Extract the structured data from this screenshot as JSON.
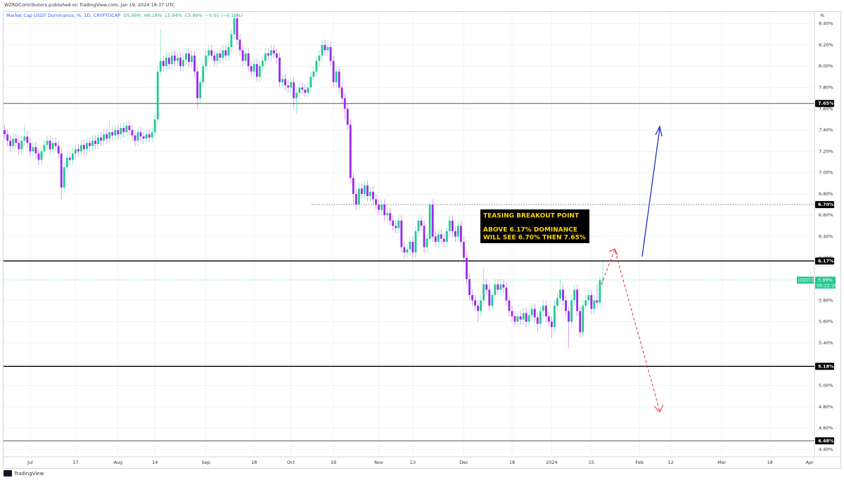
{
  "header": {
    "published": "WZRDContributors published on TradingView.com, Jan 19, 2024 18:37 UTC",
    "footer": "TradingView"
  },
  "chart_data": {
    "type": "candlestick",
    "symbol": "Market Cap USDT Dominance, %, 1D, CRYPTOCAP",
    "legend_values": [
      "O5.99%",
      "H6.16%",
      "L5.94%",
      "C5.99%",
      "−0.01 (−0.10%)"
    ],
    "unit": "%",
    "up_color": "#22c993",
    "down_color": "#9c27f0",
    "xlim": [
      -0.4,
      285.7
    ],
    "ylim": [
      4.33,
      8.51
    ],
    "xticks": [
      {
        "value": 9,
        "label": "Jul"
      },
      {
        "value": 25,
        "label": "17"
      },
      {
        "value": 40,
        "label": "Aug"
      },
      {
        "value": 53,
        "label": "14"
      },
      {
        "value": 71,
        "label": "Sep"
      },
      {
        "value": 88,
        "label": "18"
      },
      {
        "value": 101,
        "label": "Oct"
      },
      {
        "value": 116,
        "label": "16"
      },
      {
        "value": 132,
        "label": "Nov"
      },
      {
        "value": 144,
        "label": "13"
      },
      {
        "value": 162,
        "label": "Dec"
      },
      {
        "value": 179,
        "label": "18"
      },
      {
        "value": 193,
        "label": "2024"
      },
      {
        "value": 207,
        "label": "15"
      },
      {
        "value": 224,
        "label": "Feb"
      },
      {
        "value": 235,
        "label": "12"
      },
      {
        "value": 253,
        "label": "Mar"
      },
      {
        "value": 270,
        "label": "18"
      },
      {
        "value": 284,
        "label": "Apr"
      }
    ],
    "yticks": [
      {
        "value": 8.4,
        "label": "8.40%"
      },
      {
        "value": 8.2,
        "label": "8.20%"
      },
      {
        "value": 8.0,
        "label": "8.00%"
      },
      {
        "value": 7.8,
        "label": "7.80%"
      },
      {
        "value": 7.6,
        "label": "7.60%"
      },
      {
        "value": 7.4,
        "label": "7.40%"
      },
      {
        "value": 7.2,
        "label": "7.20%"
      },
      {
        "value": 7.0,
        "label": "7.00%"
      },
      {
        "value": 6.8,
        "label": "6.80%"
      },
      {
        "value": 6.6,
        "label": "6.60%"
      },
      {
        "value": 6.4,
        "label": "6.40%"
      },
      {
        "value": 6.2,
        "label": "6.20%"
      },
      {
        "value": 6.0,
        "label": "6.00%"
      },
      {
        "value": 5.8,
        "label": "5.80%"
      },
      {
        "value": 5.6,
        "label": "5.60%"
      },
      {
        "value": 5.4,
        "label": "5.40%"
      },
      {
        "value": 5.2,
        "label": "5.20%"
      },
      {
        "value": 5.0,
        "label": "5.00%"
      },
      {
        "value": 4.8,
        "label": "4.80%"
      },
      {
        "value": 4.6,
        "label": "4.60%"
      },
      {
        "value": 4.4,
        "label": "4.40%"
      }
    ],
    "grid": true,
    "levels": [
      {
        "value": 7.65,
        "label": "7.65%",
        "style": "solid",
        "color": "#555555"
      },
      {
        "value": 6.7,
        "label": "6.70%",
        "style": "dotted",
        "color": "#777777"
      },
      {
        "value": 6.17,
        "label": "6.17%",
        "style": "solid",
        "color": "#000000"
      },
      {
        "value": 5.18,
        "label": "5.18%",
        "style": "solid",
        "color": "#000000"
      },
      {
        "value": 4.48,
        "label": "4.48%",
        "style": "solid",
        "color": "#555555"
      }
    ],
    "last_price": {
      "symbol": "USDT.D",
      "value": 5.99,
      "label": "5.99%",
      "countdown": "05:22:26"
    },
    "annotation": [
      "TEASING BREAKOUT POINT",
      "ABOVE 6.17% DOMINANCE",
      "WILL SEE 6.70% THEN 7.65%"
    ],
    "ohlc": [
      [
        7.4,
        7.45,
        7.31,
        7.36
      ],
      [
        7.36,
        7.41,
        7.25,
        7.3
      ],
      [
        7.3,
        7.35,
        7.2,
        7.25
      ],
      [
        7.25,
        7.37,
        7.2,
        7.32
      ],
      [
        7.32,
        7.37,
        7.23,
        7.28
      ],
      [
        7.28,
        7.33,
        7.17,
        7.22
      ],
      [
        7.22,
        7.35,
        7.17,
        7.3
      ],
      [
        7.3,
        7.45,
        7.25,
        7.34
      ],
      [
        7.34,
        7.39,
        7.23,
        7.28
      ],
      [
        7.28,
        7.33,
        7.15,
        7.2
      ],
      [
        7.2,
        7.29,
        7.15,
        7.24
      ],
      [
        7.24,
        7.29,
        7.13,
        7.18
      ],
      [
        7.18,
        7.23,
        7.07,
        7.12
      ],
      [
        7.12,
        7.25,
        7.07,
        7.2
      ],
      [
        7.2,
        7.31,
        7.15,
        7.26
      ],
      [
        7.26,
        7.35,
        7.21,
        7.3
      ],
      [
        7.3,
        7.35,
        7.17,
        7.22
      ],
      [
        7.22,
        7.33,
        7.17,
        7.28
      ],
      [
        7.28,
        7.33,
        7.2,
        7.25
      ],
      [
        7.25,
        7.3,
        7.13,
        7.18
      ],
      [
        7.18,
        7.23,
        6.75,
        6.86
      ],
      [
        6.86,
        7.1,
        6.81,
        7.05
      ],
      [
        7.05,
        7.19,
        7.0,
        7.14
      ],
      [
        7.14,
        7.19,
        7.07,
        7.12
      ],
      [
        7.12,
        7.23,
        7.07,
        7.18
      ],
      [
        7.18,
        7.27,
        7.13,
        7.22
      ],
      [
        7.22,
        7.27,
        7.15,
        7.2
      ],
      [
        7.2,
        7.31,
        7.15,
        7.26
      ],
      [
        7.26,
        7.31,
        7.17,
        7.22
      ],
      [
        7.22,
        7.33,
        7.17,
        7.28
      ],
      [
        7.28,
        7.33,
        7.2,
        7.25
      ],
      [
        7.25,
        7.35,
        7.2,
        7.3
      ],
      [
        7.3,
        7.35,
        7.22,
        7.27
      ],
      [
        7.27,
        7.38,
        7.22,
        7.33
      ],
      [
        7.33,
        7.38,
        7.25,
        7.3
      ],
      [
        7.3,
        7.41,
        7.25,
        7.36
      ],
      [
        7.36,
        7.41,
        7.27,
        7.32
      ],
      [
        7.32,
        7.48,
        7.27,
        7.38
      ],
      [
        7.38,
        7.43,
        7.3,
        7.35
      ],
      [
        7.35,
        7.45,
        7.3,
        7.4
      ],
      [
        7.4,
        7.45,
        7.31,
        7.36
      ],
      [
        7.36,
        7.47,
        7.31,
        7.42
      ],
      [
        7.42,
        7.47,
        7.33,
        7.38
      ],
      [
        7.38,
        7.49,
        7.33,
        7.44
      ],
      [
        7.44,
        7.49,
        7.35,
        7.4
      ],
      [
        7.4,
        7.45,
        7.3,
        7.35
      ],
      [
        7.35,
        7.4,
        7.25,
        7.3
      ],
      [
        7.3,
        7.43,
        7.25,
        7.38
      ],
      [
        7.38,
        7.43,
        7.29,
        7.34
      ],
      [
        7.34,
        7.39,
        7.27,
        7.32
      ],
      [
        7.32,
        7.41,
        7.27,
        7.36
      ],
      [
        7.36,
        7.41,
        7.28,
        7.33
      ],
      [
        7.33,
        7.43,
        7.28,
        7.38
      ],
      [
        7.38,
        7.55,
        7.33,
        7.5
      ],
      [
        7.5,
        8.0,
        7.45,
        7.95
      ],
      [
        7.95,
        8.35,
        7.9,
        8.05
      ],
      [
        8.05,
        8.1,
        7.95,
        8.0
      ],
      [
        8.0,
        8.13,
        7.95,
        8.08
      ],
      [
        8.08,
        8.13,
        7.97,
        8.02
      ],
      [
        8.02,
        8.15,
        7.97,
        8.1
      ],
      [
        8.1,
        8.15,
        8.0,
        8.05
      ],
      [
        8.05,
        8.13,
        8.0,
        8.08
      ],
      [
        8.08,
        8.13,
        7.95,
        8.0
      ],
      [
        8.0,
        8.11,
        7.95,
        8.06
      ],
      [
        8.06,
        8.17,
        8.01,
        8.12
      ],
      [
        8.12,
        8.17,
        7.99,
        8.04
      ],
      [
        8.04,
        8.15,
        7.99,
        8.1
      ],
      [
        8.1,
        8.15,
        7.9,
        7.95
      ],
      [
        7.95,
        8.0,
        7.6,
        7.7
      ],
      [
        7.7,
        7.9,
        7.65,
        7.85
      ],
      [
        7.85,
        8.05,
        7.8,
        8.0
      ],
      [
        8.0,
        8.15,
        7.95,
        8.1
      ],
      [
        8.1,
        8.2,
        8.05,
        8.15
      ],
      [
        8.15,
        8.2,
        8.05,
        8.1
      ],
      [
        8.1,
        8.15,
        8.0,
        8.05
      ],
      [
        8.05,
        8.17,
        8.0,
        8.12
      ],
      [
        8.12,
        8.17,
        8.03,
        8.08
      ],
      [
        8.08,
        8.2,
        8.03,
        8.15
      ],
      [
        8.15,
        8.2,
        8.05,
        8.1
      ],
      [
        8.1,
        8.23,
        8.05,
        8.18
      ],
      [
        8.18,
        8.35,
        8.13,
        8.3
      ],
      [
        8.3,
        8.5,
        8.25,
        8.45
      ],
      [
        8.45,
        8.5,
        8.2,
        8.25
      ],
      [
        8.25,
        8.3,
        8.1,
        8.15
      ],
      [
        8.15,
        8.2,
        8.0,
        8.05
      ],
      [
        8.05,
        8.17,
        8.0,
        8.12
      ],
      [
        8.12,
        8.17,
        7.95,
        8.0
      ],
      [
        8.0,
        8.05,
        7.9,
        7.95
      ],
      [
        7.95,
        8.07,
        7.9,
        8.02
      ],
      [
        8.02,
        8.07,
        7.85,
        7.9
      ],
      [
        7.9,
        8.05,
        7.85,
        8.0
      ],
      [
        8.0,
        8.1,
        7.95,
        8.05
      ],
      [
        8.05,
        8.17,
        8.0,
        8.12
      ],
      [
        8.12,
        8.17,
        8.05,
        8.1
      ],
      [
        8.1,
        8.2,
        8.05,
        8.15
      ],
      [
        8.15,
        8.2,
        8.07,
        8.12
      ],
      [
        8.12,
        8.17,
        8.03,
        8.08
      ],
      [
        8.08,
        8.13,
        7.8,
        7.85
      ],
      [
        7.85,
        7.93,
        7.8,
        7.88
      ],
      [
        7.88,
        7.93,
        7.77,
        7.82
      ],
      [
        7.82,
        7.87,
        7.75,
        7.8
      ],
      [
        7.8,
        7.9,
        7.75,
        7.85
      ],
      [
        7.85,
        7.9,
        7.6,
        7.7
      ],
      [
        7.7,
        7.8,
        7.55,
        7.75
      ],
      [
        7.75,
        7.85,
        7.7,
        7.8
      ],
      [
        7.8,
        7.85,
        7.73,
        7.78
      ],
      [
        7.78,
        7.83,
        7.7,
        7.75
      ],
      [
        7.75,
        7.85,
        7.7,
        7.8
      ],
      [
        7.8,
        7.95,
        7.75,
        7.9
      ],
      [
        7.9,
        8.0,
        7.85,
        7.95
      ],
      [
        7.95,
        8.1,
        7.9,
        8.05
      ],
      [
        8.05,
        8.15,
        8.0,
        8.1
      ],
      [
        8.1,
        8.25,
        8.05,
        8.2
      ],
      [
        8.2,
        8.25,
        8.1,
        8.15
      ],
      [
        8.15,
        8.23,
        8.1,
        8.18
      ],
      [
        8.18,
        8.23,
        8.0,
        8.05
      ],
      [
        8.05,
        8.1,
        7.8,
        7.85
      ],
      [
        7.85,
        8.0,
        7.8,
        7.95
      ],
      [
        7.95,
        8.0,
        7.75,
        7.8
      ],
      [
        7.8,
        7.85,
        7.65,
        7.7
      ],
      [
        7.7,
        7.75,
        7.5,
        7.6
      ],
      [
        7.6,
        7.65,
        7.4,
        7.45
      ],
      [
        7.45,
        7.5,
        6.9,
        6.95
      ],
      [
        6.95,
        7.0,
        6.7,
        6.8
      ],
      [
        6.8,
        6.85,
        6.65,
        6.7
      ],
      [
        6.7,
        6.9,
        6.65,
        6.85
      ],
      [
        6.85,
        6.9,
        6.75,
        6.8
      ],
      [
        6.8,
        6.93,
        6.75,
        6.88
      ],
      [
        6.88,
        6.93,
        6.73,
        6.78
      ],
      [
        6.78,
        6.87,
        6.73,
        6.82
      ],
      [
        6.82,
        6.87,
        6.7,
        6.75
      ],
      [
        6.75,
        6.8,
        6.65,
        6.7
      ],
      [
        6.7,
        6.75,
        6.6,
        6.65
      ],
      [
        6.65,
        6.75,
        6.6,
        6.7
      ],
      [
        6.7,
        6.75,
        6.55,
        6.6
      ],
      [
        6.6,
        6.67,
        6.55,
        6.62
      ],
      [
        6.62,
        6.67,
        6.5,
        6.55
      ],
      [
        6.55,
        6.6,
        6.45,
        6.5
      ],
      [
        6.5,
        6.55,
        6.43,
        6.48
      ],
      [
        6.48,
        6.6,
        6.43,
        6.55
      ],
      [
        6.55,
        6.6,
        6.25,
        6.3
      ],
      [
        6.3,
        6.35,
        6.2,
        6.25
      ],
      [
        6.25,
        6.33,
        6.2,
        6.28
      ],
      [
        6.28,
        6.4,
        6.23,
        6.35
      ],
      [
        6.35,
        6.4,
        6.2,
        6.25
      ],
      [
        6.25,
        6.5,
        6.2,
        6.45
      ],
      [
        6.45,
        6.6,
        6.4,
        6.55
      ],
      [
        6.55,
        6.6,
        6.45,
        6.5
      ],
      [
        6.5,
        6.55,
        6.25,
        6.3
      ],
      [
        6.3,
        6.43,
        6.25,
        6.38
      ],
      [
        6.38,
        6.72,
        6.33,
        6.7
      ],
      [
        6.7,
        6.75,
        6.35,
        6.4
      ],
      [
        6.4,
        6.45,
        6.3,
        6.35
      ],
      [
        6.35,
        6.47,
        6.3,
        6.42
      ],
      [
        6.42,
        6.47,
        6.33,
        6.38
      ],
      [
        6.38,
        6.43,
        6.3,
        6.35
      ],
      [
        6.35,
        6.5,
        6.3,
        6.45
      ],
      [
        6.45,
        6.6,
        6.4,
        6.55
      ],
      [
        6.55,
        6.6,
        6.4,
        6.45
      ],
      [
        6.45,
        6.5,
        6.35,
        6.4
      ],
      [
        6.4,
        6.55,
        6.35,
        6.5
      ],
      [
        6.5,
        6.55,
        6.3,
        6.35
      ],
      [
        6.35,
        6.4,
        6.15,
        6.2
      ],
      [
        6.2,
        6.25,
        5.95,
        6.0
      ],
      [
        6.0,
        6.05,
        5.8,
        5.85
      ],
      [
        5.85,
        5.9,
        5.75,
        5.8
      ],
      [
        5.8,
        5.85,
        5.7,
        5.75
      ],
      [
        5.75,
        5.8,
        5.6,
        5.7
      ],
      [
        5.7,
        5.85,
        5.65,
        5.8
      ],
      [
        5.8,
        6.1,
        5.75,
        5.95
      ],
      [
        5.95,
        6.0,
        5.85,
        5.9
      ],
      [
        5.9,
        5.95,
        5.7,
        5.75
      ],
      [
        5.75,
        5.9,
        5.7,
        5.85
      ],
      [
        5.85,
        6.0,
        5.8,
        5.95
      ],
      [
        5.95,
        6.0,
        5.85,
        5.9
      ],
      [
        5.9,
        6.0,
        5.85,
        5.95
      ],
      [
        5.95,
        6.0,
        5.87,
        5.92
      ],
      [
        5.92,
        5.97,
        5.75,
        5.8
      ],
      [
        5.8,
        5.85,
        5.65,
        5.7
      ],
      [
        5.7,
        5.75,
        5.6,
        5.65
      ],
      [
        5.65,
        5.7,
        5.55,
        5.6
      ],
      [
        5.6,
        5.7,
        5.55,
        5.65
      ],
      [
        5.65,
        5.7,
        5.57,
        5.62
      ],
      [
        5.62,
        5.73,
        5.57,
        5.68
      ],
      [
        5.68,
        5.73,
        5.55,
        5.6
      ],
      [
        5.6,
        5.71,
        5.55,
        5.66
      ],
      [
        5.66,
        5.77,
        5.61,
        5.72
      ],
      [
        5.72,
        5.77,
        5.59,
        5.64
      ],
      [
        5.64,
        5.69,
        5.5,
        5.58
      ],
      [
        5.58,
        5.75,
        5.53,
        5.7
      ],
      [
        5.7,
        5.8,
        5.65,
        5.75
      ],
      [
        5.75,
        5.8,
        5.6,
        5.65
      ],
      [
        5.65,
        5.7,
        5.55,
        5.6
      ],
      [
        5.6,
        5.65,
        5.45,
        5.55
      ],
      [
        5.55,
        5.8,
        5.5,
        5.75
      ],
      [
        5.75,
        5.87,
        5.7,
        5.82
      ],
      [
        5.82,
        6.0,
        5.77,
        5.9
      ],
      [
        5.9,
        5.95,
        5.75,
        5.8
      ],
      [
        5.8,
        5.85,
        5.65,
        5.7
      ],
      [
        5.7,
        5.75,
        5.35,
        5.6
      ],
      [
        5.6,
        5.85,
        5.55,
        5.8
      ],
      [
        5.8,
        5.95,
        5.75,
        5.9
      ],
      [
        5.9,
        5.95,
        5.65,
        5.7
      ],
      [
        5.7,
        5.75,
        5.45,
        5.5
      ],
      [
        5.5,
        5.8,
        5.45,
        5.75
      ],
      [
        5.75,
        5.85,
        5.7,
        5.8
      ],
      [
        5.8,
        5.9,
        5.75,
        5.85
      ],
      [
        5.85,
        5.9,
        5.67,
        5.72
      ],
      [
        5.72,
        5.85,
        5.67,
        5.8
      ],
      [
        5.8,
        5.95,
        5.73,
        5.78
      ],
      [
        5.78,
        6.02,
        5.75,
        5.99
      ],
      [
        5.99,
        6.16,
        5.94,
        5.99
      ]
    ]
  }
}
